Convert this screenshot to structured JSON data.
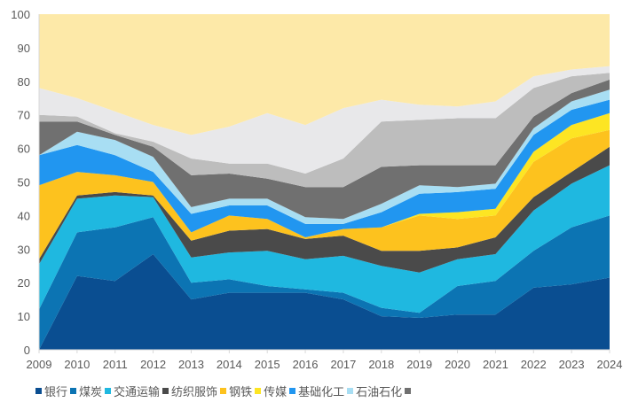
{
  "chart_data": {
    "type": "area",
    "stacked": true,
    "title": "",
    "xlabel": "",
    "ylabel": "",
    "ylim": [
      0,
      100
    ],
    "yticks": [
      "0",
      "10",
      "20",
      "30",
      "40",
      "50",
      "60",
      "70",
      "80",
      "90",
      "100"
    ],
    "x": [
      "2009",
      "2010",
      "2011",
      "2012",
      "2013",
      "2014",
      "2015",
      "2016",
      "2017",
      "2018",
      "2019",
      "2020",
      "2021",
      "2022",
      "2023",
      "2024"
    ],
    "grid": false,
    "legend_position": "bottom",
    "series": [
      {
        "name": "银行",
        "color": "#0a4e91",
        "values": [
          0,
          22,
          20.5,
          28.5,
          15,
          17,
          17,
          17,
          15,
          10,
          9.5,
          10.5,
          10.5,
          18.5,
          19.5,
          21.5
        ]
      },
      {
        "name": "煤炭",
        "color": "#0c74b3",
        "values": [
          12,
          13,
          16,
          11,
          5,
          4,
          2,
          1,
          2,
          2.5,
          1.5,
          8.5,
          10,
          11,
          17,
          18.5
        ]
      },
      {
        "name": "交通运输",
        "color": "#1fb8e0",
        "values": [
          13.5,
          10,
          9.5,
          6,
          7.5,
          8,
          10.5,
          9,
          11,
          12.5,
          12,
          8,
          8,
          12,
          13,
          15
        ]
      },
      {
        "name": "纺织服饰",
        "color": "#4a4a4a",
        "values": [
          1.5,
          1,
          1,
          0.5,
          5,
          6.5,
          6.5,
          6,
          6,
          4.5,
          6.5,
          3.5,
          5,
          4,
          3.5,
          5.5
        ]
      },
      {
        "name": "钢铁",
        "color": "#fdc21e",
        "values": [
          22,
          7,
          5,
          4,
          2.5,
          4.5,
          3,
          0.5,
          2,
          7,
          10.5,
          8.5,
          6.5,
          10.5,
          10,
          5
        ]
      },
      {
        "name": "传媒",
        "color": "#fde523",
        "values": [
          0,
          0,
          0,
          0,
          0,
          0,
          0,
          0,
          0,
          0,
          0.5,
          2,
          2,
          3,
          4,
          5
        ]
      },
      {
        "name": "基础化工",
        "color": "#2196f0",
        "values": [
          9,
          8,
          6,
          3,
          5.5,
          3,
          4,
          4,
          1.5,
          4.5,
          6,
          6,
          6,
          5,
          4.5,
          4
        ]
      },
      {
        "name": "石油石化",
        "color": "#a8def3",
        "values": [
          0,
          4,
          4.5,
          4.5,
          2,
          2,
          2,
          2,
          1.5,
          2.5,
          2.5,
          1.5,
          1.5,
          2,
          2.5,
          3
        ]
      },
      {
        "name": "",
        "color": "#707070",
        "values": [
          10,
          3,
          1.5,
          3,
          9.5,
          7.5,
          6,
          9,
          9.5,
          11,
          6,
          6.5,
          5.5,
          3.5,
          2.5,
          3
        ]
      },
      {
        "name": "",
        "color": "#bdbdbd",
        "values": [
          2,
          1.5,
          0.5,
          1.5,
          5,
          3,
          4.5,
          4,
          8.5,
          13.5,
          13.5,
          14,
          14,
          8.5,
          5,
          2
        ]
      },
      {
        "name": "",
        "color": "#e8e8ea",
        "values": [
          8,
          5.5,
          6.5,
          5,
          7,
          11,
          15,
          14.5,
          15,
          6.5,
          4.5,
          3.5,
          5,
          3.5,
          2,
          2
        ]
      },
      {
        "name": "",
        "color": "#fde9a8",
        "values": [
          22,
          25,
          29,
          33,
          36,
          33.5,
          29.5,
          33,
          28,
          25.5,
          27,
          27.5,
          26,
          18.5,
          16.5,
          15.5
        ]
      }
    ],
    "legend": [
      {
        "label": "银行",
        "color": "#0a4e91"
      },
      {
        "label": "煤炭",
        "color": "#0c74b3"
      },
      {
        "label": "交通运输",
        "color": "#1fb8e0"
      },
      {
        "label": "纺织服饰",
        "color": "#4a4a4a"
      },
      {
        "label": "钢铁",
        "color": "#fdc21e"
      },
      {
        "label": "传媒",
        "color": "#fde523"
      },
      {
        "label": "基础化工",
        "color": "#2196f0"
      },
      {
        "label": "石油石化",
        "color": "#a8def3"
      },
      {
        "label": "",
        "color": "#707070"
      }
    ]
  }
}
